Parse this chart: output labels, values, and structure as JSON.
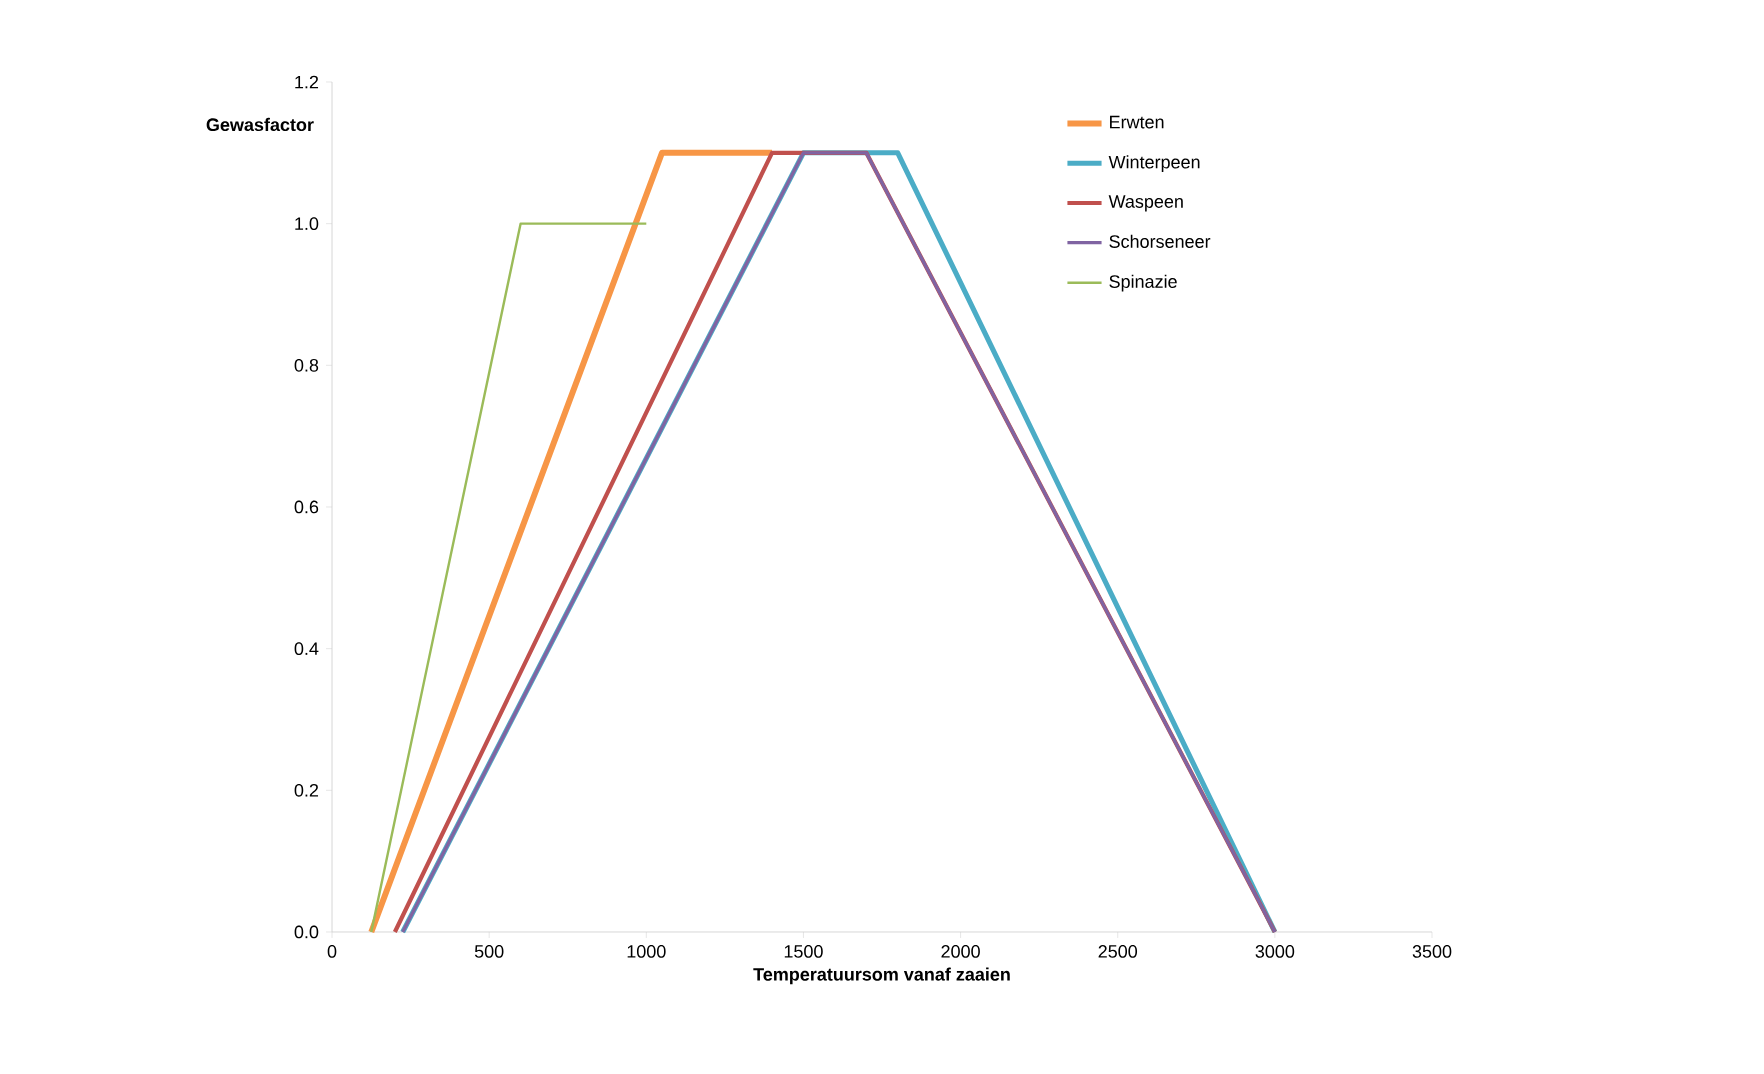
{
  "chart_data": {
    "type": "line",
    "xlabel": "Temperatuursom vanaf zaaien",
    "ylabel": "Gewasfactor",
    "xlim": [
      0,
      3500
    ],
    "xticks": [
      0,
      500,
      1000,
      1500,
      2000,
      2500,
      3000,
      3500
    ],
    "ylim": [
      0,
      1.2
    ],
    "yticks": [
      {
        "value": 0,
        "label": "0.0"
      },
      {
        "value": 0.2,
        "label": "0.2"
      },
      {
        "value": 0.4,
        "label": "0.4"
      },
      {
        "value": 0.6,
        "label": "0.6"
      },
      {
        "value": 0.8,
        "label": "0.8"
      },
      {
        "value": 1.0,
        "label": "1.0"
      },
      {
        "value": 1.2,
        "label": "1.2"
      }
    ],
    "grid": false,
    "legend": "top right",
    "marker": "none",
    "line_style": "solid",
    "series": [
      {
        "name": "Erwten",
        "color": "#f79646",
        "x": [
          125,
          1050,
          1400
        ],
        "values": [
          0,
          1.1,
          1.1
        ]
      },
      {
        "name": "Winterpeen",
        "color": "#4bacc6",
        "x": [
          225,
          1500,
          1800,
          3000
        ],
        "values": [
          0,
          1.1,
          1.1,
          0
        ]
      },
      {
        "name": "Waspeen",
        "color": "#c0504d",
        "x": [
          200,
          1400,
          1700,
          3000
        ],
        "values": [
          0,
          1.1,
          1.1,
          0
        ]
      },
      {
        "name": "Schorseneer",
        "color": "#8064a2",
        "x": [
          225,
          1500,
          1700,
          3000
        ],
        "values": [
          0,
          1.1,
          1.1,
          0
        ]
      },
      {
        "name": "Spinazie",
        "color": "#9bbb59",
        "x": [
          125,
          600,
          1000
        ],
        "values": [
          0,
          1.0,
          1.0
        ]
      }
    ]
  }
}
